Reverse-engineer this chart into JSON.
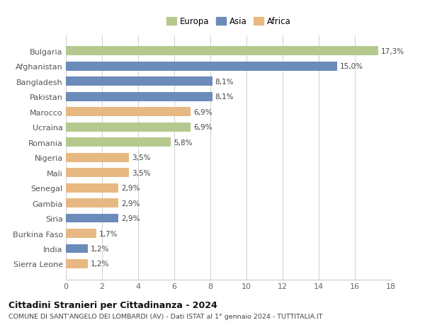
{
  "countries": [
    "Bulgaria",
    "Afghanistan",
    "Bangladesh",
    "Pakistan",
    "Marocco",
    "Ucraina",
    "Romania",
    "Nigeria",
    "Mali",
    "Senegal",
    "Gambia",
    "Siria",
    "Burkina Faso",
    "India",
    "Sierra Leone"
  ],
  "values": [
    17.3,
    15.0,
    8.1,
    8.1,
    6.9,
    6.9,
    5.8,
    3.5,
    3.5,
    2.9,
    2.9,
    2.9,
    1.7,
    1.2,
    1.2
  ],
  "labels": [
    "17,3%",
    "15,0%",
    "8,1%",
    "8,1%",
    "6,9%",
    "6,9%",
    "5,8%",
    "3,5%",
    "3,5%",
    "2,9%",
    "2,9%",
    "2,9%",
    "1,7%",
    "1,2%",
    "1,2%"
  ],
  "continents": [
    "Europa",
    "Asia",
    "Asia",
    "Asia",
    "Africa",
    "Europa",
    "Europa",
    "Africa",
    "Africa",
    "Africa",
    "Africa",
    "Asia",
    "Africa",
    "Asia",
    "Africa"
  ],
  "colors": {
    "Europa": "#b5c98e",
    "Asia": "#6b8cba",
    "Africa": "#e8b882"
  },
  "xlim": [
    0,
    18
  ],
  "xticks": [
    0,
    2,
    4,
    6,
    8,
    10,
    12,
    14,
    16,
    18
  ],
  "title": "Cittadini Stranieri per Cittadinanza - 2024",
  "subtitle": "COMUNE DI SANT'ANGELO DEI LOMBARDI (AV) - Dati ISTAT al 1° gennaio 2024 - TUTTITALIA.IT",
  "bg_color": "#ffffff",
  "grid_color": "#d0d0d0"
}
